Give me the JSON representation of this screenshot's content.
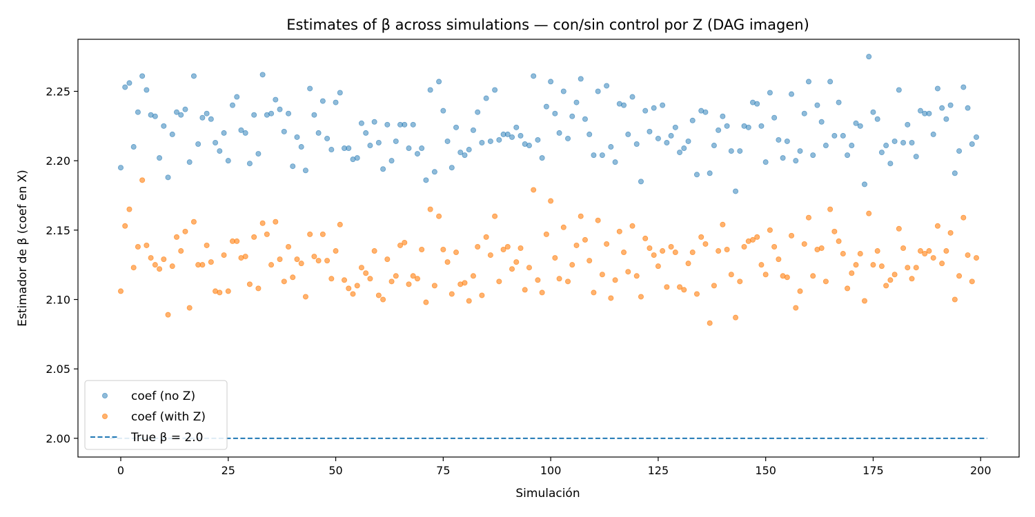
{
  "chart_data": {
    "type": "scatter",
    "title": "Estimates of β across simulations — con/sin control por Z (DAG imagen)",
    "xlabel": "Simulación",
    "ylabel": "Estimador de β (coef en X)",
    "xlim": [
      -9.95,
      208.95
    ],
    "ylim": [
      1.9865,
      2.2875
    ],
    "xticks": [
      0,
      25,
      50,
      75,
      100,
      125,
      150,
      175,
      200
    ],
    "yticks": [
      2.0,
      2.05,
      2.1,
      2.15,
      2.2,
      2.25
    ],
    "ytick_labels": [
      "2.00",
      "2.05",
      "2.10",
      "2.15",
      "2.20",
      "2.25"
    ],
    "legend_position": "lower-left",
    "grid": false,
    "series": [
      {
        "name": "coef (no Z)",
        "color": "#1f77b4",
        "x_start": 0,
        "values": [
          2.195,
          2.253,
          2.256,
          2.21,
          2.235,
          2.261,
          2.251,
          2.233,
          2.232,
          2.202,
          2.225,
          2.188,
          2.219,
          2.235,
          2.233,
          2.237,
          2.199,
          2.261,
          2.212,
          2.231,
          2.234,
          2.23,
          2.213,
          2.207,
          2.22,
          2.2,
          2.24,
          2.246,
          2.222,
          2.22,
          2.198,
          2.233,
          2.205,
          2.262,
          2.233,
          2.234,
          2.244,
          2.237,
          2.221,
          2.234,
          2.196,
          2.217,
          2.21,
          2.193,
          2.252,
          2.233,
          2.22,
          2.243,
          2.216,
          2.208,
          2.242,
          2.249,
          2.209,
          2.209,
          2.201,
          2.202,
          2.227,
          2.22,
          2.211,
          2.228,
          2.213,
          2.194,
          2.226,
          2.2,
          2.214,
          2.226,
          2.226,
          2.209,
          2.226,
          2.205,
          2.209,
          2.186,
          2.251,
          2.192,
          2.257,
          2.236,
          2.214,
          2.195,
          2.224,
          2.206,
          2.204,
          2.208,
          2.222,
          2.235,
          2.213,
          2.245,
          2.214,
          2.251,
          2.215,
          2.219,
          2.219,
          2.217,
          2.224,
          2.218,
          2.212,
          2.211,
          2.261,
          2.215,
          2.202,
          2.239,
          2.257,
          2.234,
          2.22,
          2.25,
          2.216,
          2.232,
          2.242,
          2.259,
          2.23,
          2.219,
          2.204,
          2.25,
          2.204,
          2.254,
          2.21,
          2.199,
          2.241,
          2.24,
          2.219,
          2.246,
          2.212,
          2.185,
          2.236,
          2.221,
          2.238,
          2.216,
          2.24,
          2.213,
          2.218,
          2.224,
          2.206,
          2.209,
          2.214,
          2.229,
          2.19,
          2.236,
          2.235,
          2.191,
          2.211,
          2.222,
          2.232,
          2.225,
          2.207,
          2.178,
          2.207,
          2.225,
          2.224,
          2.242,
          2.241,
          2.225,
          2.199,
          2.249,
          2.231,
          2.215,
          2.202,
          2.214,
          2.248,
          2.2,
          2.207,
          2.234,
          2.257,
          2.204,
          2.24,
          2.228,
          2.211,
          2.257,
          2.218,
          2.242,
          2.218,
          2.204,
          2.211,
          2.227,
          2.225,
          2.183,
          2.275,
          2.235,
          2.23,
          2.206,
          2.211,
          2.198,
          2.214,
          2.251,
          2.213,
          2.226,
          2.213,
          2.203,
          2.236,
          2.234,
          2.234,
          2.219,
          2.252,
          2.238,
          2.23,
          2.24,
          2.191,
          2.207,
          2.253,
          2.238,
          2.212,
          2.217
        ]
      },
      {
        "name": "coef (with Z)",
        "color": "#ff7f0e",
        "x_start": 0,
        "values": [
          2.106,
          2.153,
          2.165,
          2.123,
          2.138,
          2.186,
          2.139,
          2.13,
          2.125,
          2.122,
          2.129,
          2.089,
          2.124,
          2.145,
          2.135,
          2.149,
          2.094,
          2.156,
          2.125,
          2.125,
          2.139,
          2.127,
          2.106,
          2.105,
          2.132,
          2.106,
          2.142,
          2.142,
          2.13,
          2.131,
          2.111,
          2.145,
          2.108,
          2.155,
          2.147,
          2.125,
          2.156,
          2.129,
          2.113,
          2.138,
          2.116,
          2.129,
          2.126,
          2.102,
          2.147,
          2.131,
          2.128,
          2.147,
          2.128,
          2.115,
          2.135,
          2.154,
          2.114,
          2.108,
          2.104,
          2.11,
          2.123,
          2.119,
          2.115,
          2.135,
          2.103,
          2.1,
          2.129,
          2.113,
          2.117,
          2.139,
          2.141,
          2.111,
          2.117,
          2.115,
          2.136,
          2.098,
          2.165,
          2.11,
          2.16,
          2.136,
          2.127,
          2.104,
          2.134,
          2.111,
          2.112,
          2.099,
          2.117,
          2.138,
          2.103,
          2.145,
          2.132,
          2.16,
          2.113,
          2.136,
          2.138,
          2.122,
          2.127,
          2.137,
          2.107,
          2.123,
          2.179,
          2.114,
          2.105,
          2.147,
          2.171,
          2.13,
          2.115,
          2.152,
          2.113,
          2.125,
          2.139,
          2.16,
          2.143,
          2.128,
          2.105,
          2.157,
          2.118,
          2.14,
          2.101,
          2.114,
          2.149,
          2.134,
          2.12,
          2.153,
          2.117,
          2.102,
          2.144,
          2.137,
          2.132,
          2.124,
          2.135,
          2.109,
          2.138,
          2.134,
          2.109,
          2.107,
          2.126,
          2.134,
          2.104,
          2.145,
          2.14,
          2.083,
          2.11,
          2.135,
          2.154,
          2.136,
          2.118,
          2.087,
          2.113,
          2.138,
          2.142,
          2.143,
          2.145,
          2.125,
          2.118,
          2.15,
          2.138,
          2.129,
          2.117,
          2.116,
          2.146,
          2.094,
          2.106,
          2.14,
          2.159,
          2.117,
          2.136,
          2.137,
          2.113,
          2.165,
          2.149,
          2.142,
          2.133,
          2.108,
          2.119,
          2.125,
          2.133,
          2.099,
          2.162,
          2.125,
          2.135,
          2.124,
          2.11,
          2.114,
          2.118,
          2.151,
          2.137,
          2.123,
          2.115,
          2.123,
          2.135,
          2.133,
          2.135,
          2.13,
          2.153,
          2.126,
          2.135,
          2.148,
          2.1,
          2.117,
          2.159,
          2.132,
          2.113,
          2.13
        ]
      }
    ],
    "reference_line": {
      "label": "True β = 2.0",
      "y": 2.0,
      "x_range": [
        -2.5,
        201.5
      ],
      "color": "#1f77b4",
      "style": "dashed"
    }
  }
}
